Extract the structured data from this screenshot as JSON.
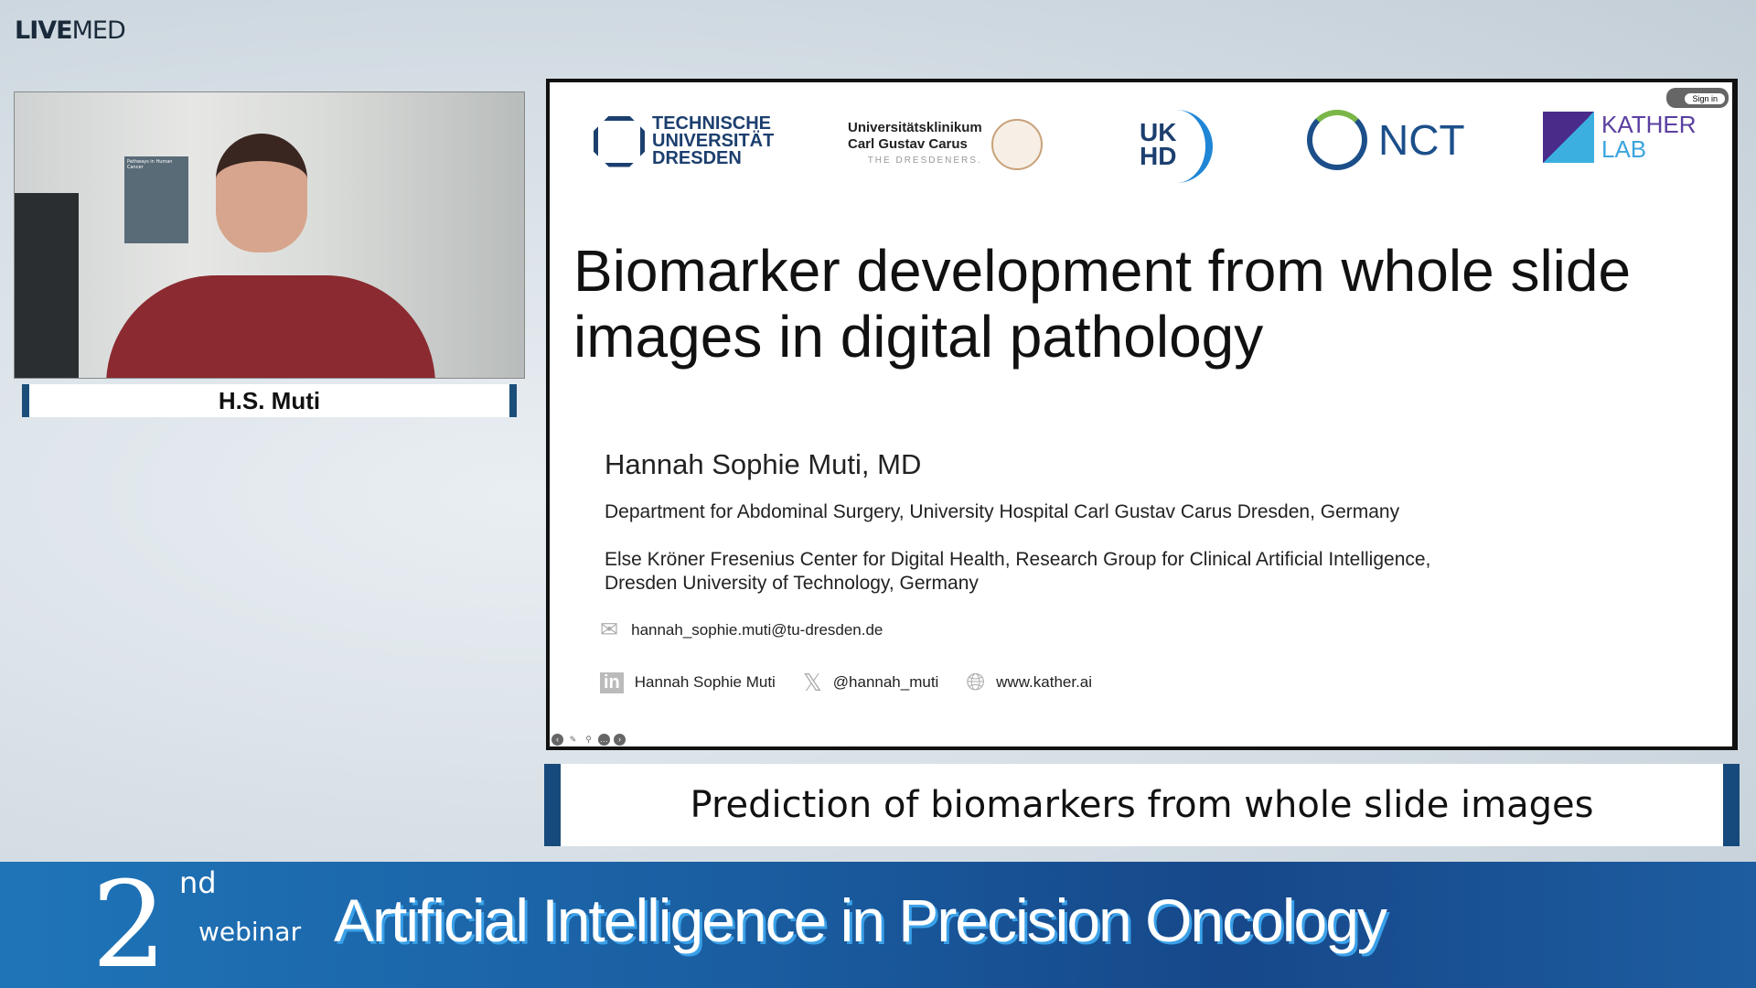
{
  "brand": {
    "live": "LIVE",
    "med": "MED"
  },
  "speaker": {
    "name": "H.S. Muti",
    "poster_text": "Pathways in Human Cancer"
  },
  "slide": {
    "logos": {
      "tud": [
        "TECHNISCHE",
        "UNIVERSITÄT",
        "DRESDEN"
      ],
      "ukc": [
        "Universitätsklinikum",
        "Carl Gustav Carus",
        "THE DRESDENERS."
      ],
      "ukhd": [
        "UK",
        "HD"
      ],
      "nct": "NCT",
      "kather": [
        "KATHER",
        "LAB"
      ]
    },
    "title": "Biomarker development from whole slide images in digital pathology",
    "author": "Hannah Sophie Muti, MD",
    "affiliation1": "Department for Abdominal Surgery, University Hospital Carl Gustav Carus Dresden, Germany",
    "affiliation2a": "Else Kröner Fresenius Center for Digital Health, Research Group for Clinical Artificial Intelligence,",
    "affiliation2b": "Dresden University of Technology, Germany",
    "email": "hannah_sophie.muti@tu-dresden.de",
    "linkedin": "Hannah Sophie Muti",
    "twitter": "@hannah_muti",
    "website": "www.kather.ai",
    "sign_in": "Sign in"
  },
  "caption": "Prediction of biomarkers from whole slide images",
  "banner": {
    "number": "2",
    "suffix": "nd",
    "webinar": "webinar",
    "title": "Artificial Intelligence in Precision Oncology"
  }
}
